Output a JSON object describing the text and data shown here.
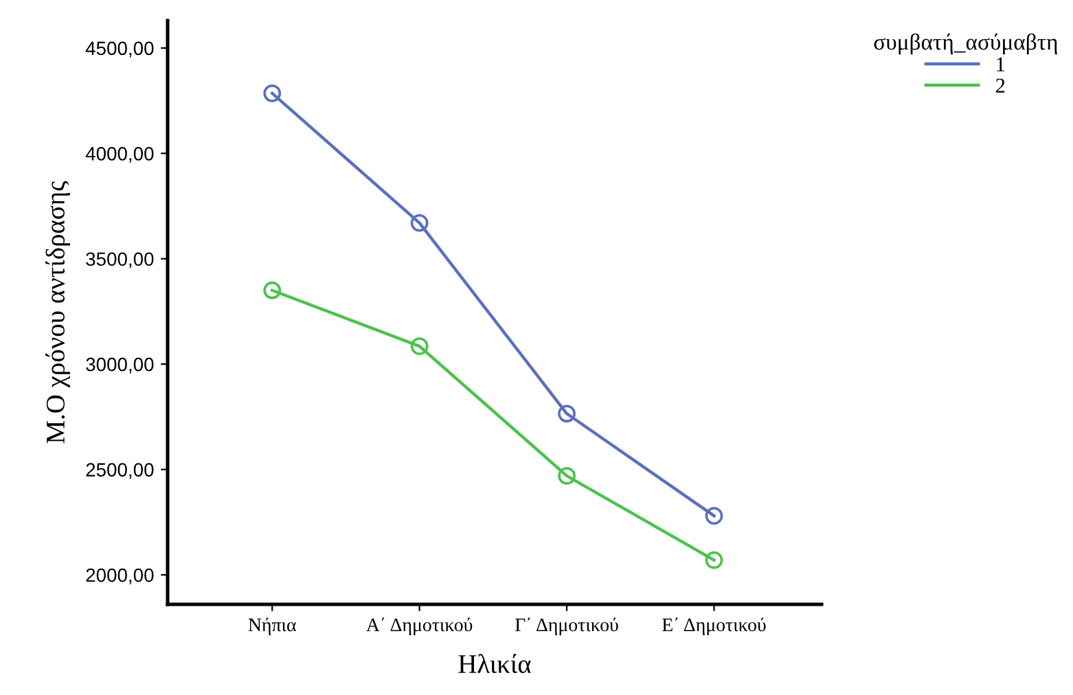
{
  "chart_data": {
    "type": "line",
    "xlabel": "Ηλικία",
    "ylabel": "Μ.Ο χρόνου αντίδρασης",
    "legend_title": "συμβατή_ασύμαβτη",
    "categories": [
      "Νήπια",
      "Α΄ Δημοτικού",
      "Γ΄ Δημοτικού",
      "Ε΄ Δημοτικού"
    ],
    "series": [
      {
        "name": "1",
        "color": "#5b6fbf",
        "values": [
          4285,
          3670,
          2765,
          2280
        ]
      },
      {
        "name": "2",
        "color": "#4cc24c",
        "values": [
          3350,
          3085,
          2470,
          2070
        ]
      }
    ],
    "ylim": [
      1860,
      4630
    ],
    "yticks": [
      {
        "value": 2000,
        "label": "2000,00"
      },
      {
        "value": 2500,
        "label": "2500,00"
      },
      {
        "value": 3000,
        "label": "3000,00"
      },
      {
        "value": 3500,
        "label": "3500,00"
      },
      {
        "value": 4000,
        "label": "4000,00"
      },
      {
        "value": 4500,
        "label": "4500,00"
      }
    ],
    "marker": "circle",
    "line_style": "solid",
    "grid": false,
    "legend": "top right"
  }
}
